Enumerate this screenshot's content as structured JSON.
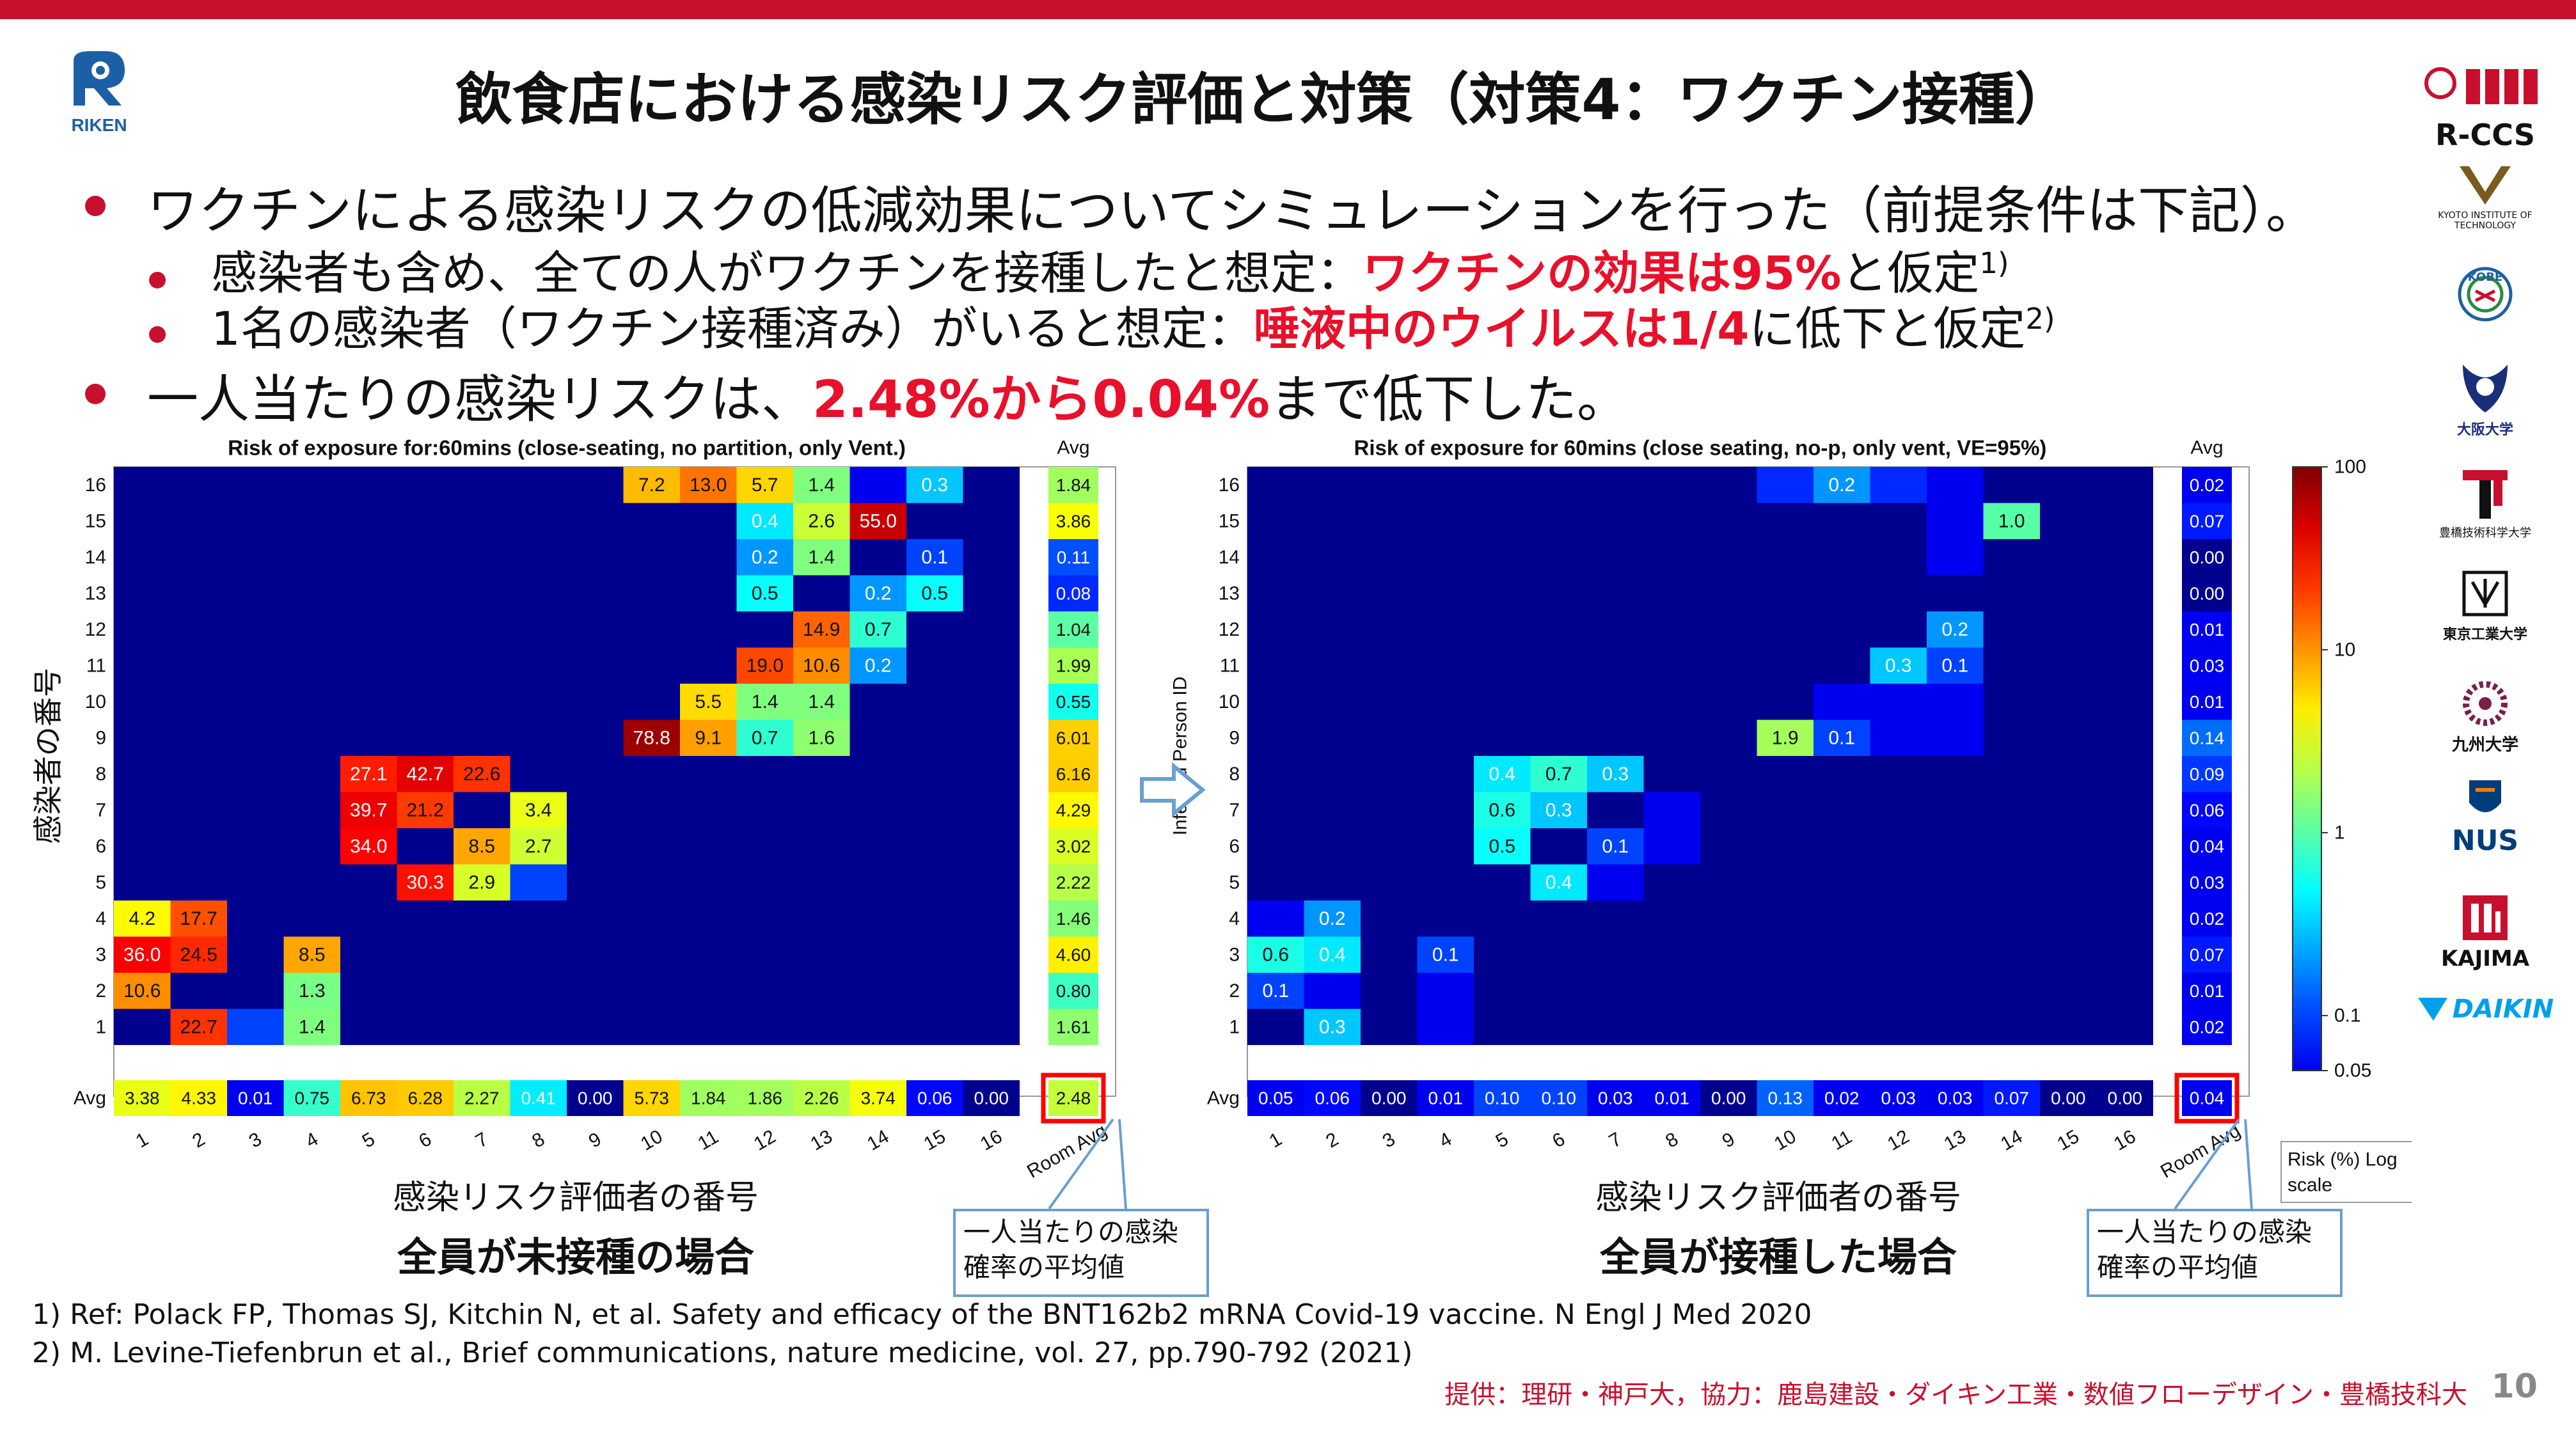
{
  "header": {
    "title": "飲食店における感染リスク評価と対策（対策4：ワクチン接種）",
    "logo_text": "RIKEN"
  },
  "bullets": {
    "b1": "ワクチンによる感染リスクの低減効果についてシミュレーションを行った（前提条件は下記）。",
    "b2_pre": "感染者も含め、全ての人がワクチンを接種したと想定：",
    "b2_red": "ワクチンの効果は95%",
    "b2_post": "と仮定",
    "b2_sup": "1)",
    "b3_pre": "1名の感染者（ワクチン接種済み）がいると想定：",
    "b3_red": "唾液中のウイルスは1/4",
    "b3_post": "に低下と仮定",
    "b3_sup": "2)",
    "b4_pre": "一人当たりの感染リスクは、",
    "b4_red": "2.48%から0.04%",
    "b4_post": "まで低下した。"
  },
  "chart_data": [
    {
      "type": "heatmap",
      "title": "Risk of exposure for:60mins (close-seating, no partition, only Vent.)",
      "ylabel": "感染者の番号",
      "xlabel": "感染リスク評価者の番号",
      "rows": [
        1,
        2,
        3,
        4,
        5,
        6,
        7,
        8,
        9,
        10,
        11,
        12,
        13,
        14,
        15,
        16
      ],
      "cols": [
        1,
        2,
        3,
        4,
        5,
        6,
        7,
        8,
        9,
        10,
        11,
        12,
        13,
        14,
        15,
        16
      ],
      "cells": [
        {
          "r": 16,
          "c": 10,
          "v": 7.2
        },
        {
          "r": 16,
          "c": 11,
          "v": 13.0
        },
        {
          "r": 16,
          "c": 12,
          "v": 5.7
        },
        {
          "r": 16,
          "c": 13,
          "v": 1.4
        },
        {
          "r": 16,
          "c": 14,
          "v": 0.01
        },
        {
          "r": 16,
          "c": 15,
          "v": 0.3
        },
        {
          "r": 15,
          "c": 12,
          "v": 0.4
        },
        {
          "r": 15,
          "c": 13,
          "v": 2.6
        },
        {
          "r": 15,
          "c": 14,
          "v": 55.0
        },
        {
          "r": 14,
          "c": 12,
          "v": 0.2
        },
        {
          "r": 14,
          "c": 13,
          "v": 1.4
        },
        {
          "r": 14,
          "c": 15,
          "v": 0.1
        },
        {
          "r": 13,
          "c": 12,
          "v": 0.5
        },
        {
          "r": 13,
          "c": 14,
          "v": 0.2
        },
        {
          "r": 13,
          "c": 15,
          "v": 0.5
        },
        {
          "r": 12,
          "c": 13,
          "v": 14.9
        },
        {
          "r": 12,
          "c": 14,
          "v": 0.7
        },
        {
          "r": 11,
          "c": 12,
          "v": 19.0
        },
        {
          "r": 11,
          "c": 13,
          "v": 10.6
        },
        {
          "r": 11,
          "c": 14,
          "v": 0.2
        },
        {
          "r": 10,
          "c": 11,
          "v": 5.5
        },
        {
          "r": 10,
          "c": 12,
          "v": 1.4
        },
        {
          "r": 10,
          "c": 13,
          "v": 1.4
        },
        {
          "r": 9,
          "c": 10,
          "v": 78.8
        },
        {
          "r": 9,
          "c": 11,
          "v": 9.1
        },
        {
          "r": 9,
          "c": 12,
          "v": 0.7
        },
        {
          "r": 9,
          "c": 13,
          "v": 1.6
        },
        {
          "r": 8,
          "c": 5,
          "v": 27.1
        },
        {
          "r": 8,
          "c": 6,
          "v": 42.7
        },
        {
          "r": 8,
          "c": 7,
          "v": 22.6
        },
        {
          "r": 7,
          "c": 5,
          "v": 39.7
        },
        {
          "r": 7,
          "c": 6,
          "v": 21.2
        },
        {
          "r": 7,
          "c": 8,
          "v": 3.4
        },
        {
          "r": 6,
          "c": 5,
          "v": 34.0
        },
        {
          "r": 6,
          "c": 7,
          "v": 8.5
        },
        {
          "r": 6,
          "c": 8,
          "v": 2.7
        },
        {
          "r": 5,
          "c": 6,
          "v": 30.3
        },
        {
          "r": 5,
          "c": 7,
          "v": 2.9
        },
        {
          "r": 5,
          "c": 8,
          "v": 0.1
        },
        {
          "r": 4,
          "c": 1,
          "v": 4.2
        },
        {
          "r": 4,
          "c": 2,
          "v": 17.7
        },
        {
          "r": 3,
          "c": 1,
          "v": 36.0
        },
        {
          "r": 3,
          "c": 2,
          "v": 24.5
        },
        {
          "r": 3,
          "c": 4,
          "v": 8.5
        },
        {
          "r": 2,
          "c": 1,
          "v": 10.6
        },
        {
          "r": 2,
          "c": 4,
          "v": 1.3
        },
        {
          "r": 1,
          "c": 2,
          "v": 22.7
        },
        {
          "r": 1,
          "c": 3,
          "v": 0.1
        },
        {
          "r": 1,
          "c": 4,
          "v": 1.4
        }
      ],
      "hidden_label_cells": [
        {
          "r": 16,
          "c": 14
        },
        {
          "r": 5,
          "c": 8
        },
        {
          "r": 1,
          "c": 3
        }
      ],
      "row_avg_label": "Avg",
      "row_avg": [
        1.61,
        0.8,
        4.6,
        1.46,
        2.22,
        3.02,
        4.29,
        6.16,
        6.01,
        0.55,
        1.99,
        1.04,
        0.08,
        0.11,
        3.86,
        1.84
      ],
      "col_avg_label": "Avg",
      "col_avg": [
        3.38,
        4.33,
        0.01,
        0.75,
        6.73,
        6.28,
        2.27,
        0.41,
        0.0,
        5.73,
        1.84,
        1.86,
        2.26,
        3.74,
        0.06,
        0.0
      ],
      "room_avg_label": "Room Avg",
      "room_avg": 2.48,
      "caption": "全員が未接種の場合",
      "callout": "一人当たりの感染確率の平均値"
    },
    {
      "type": "heatmap",
      "title": "Risk of exposure for 60mins (close seating, no-p, only vent, VE=95%)",
      "ylabel": "Infected Person ID",
      "xlabel": "感染リスク評価者の番号",
      "rows": [
        1,
        2,
        3,
        4,
        5,
        6,
        7,
        8,
        9,
        10,
        11,
        12,
        13,
        14,
        15,
        16
      ],
      "cols": [
        1,
        2,
        3,
        4,
        5,
        6,
        7,
        8,
        9,
        10,
        11,
        12,
        13,
        14,
        15,
        16
      ],
      "cells": [
        {
          "r": 16,
          "c": 10,
          "v": 0.08
        },
        {
          "r": 16,
          "c": 11,
          "v": 0.2
        },
        {
          "r": 16,
          "c": 12,
          "v": 0.08
        },
        {
          "r": 16,
          "c": 13,
          "v": 0.03
        },
        {
          "r": 15,
          "c": 13,
          "v": 0.05
        },
        {
          "r": 15,
          "c": 14,
          "v": 1.0
        },
        {
          "r": 14,
          "c": 13,
          "v": 0.02
        },
        {
          "r": 12,
          "c": 13,
          "v": 0.2
        },
        {
          "r": 11,
          "c": 12,
          "v": 0.3
        },
        {
          "r": 11,
          "c": 13,
          "v": 0.1
        },
        {
          "r": 10,
          "c": 11,
          "v": 0.05
        },
        {
          "r": 10,
          "c": 12,
          "v": 0.04
        },
        {
          "r": 10,
          "c": 13,
          "v": 0.04
        },
        {
          "r": 9,
          "c": 10,
          "v": 1.9
        },
        {
          "r": 9,
          "c": 11,
          "v": 0.1
        },
        {
          "r": 9,
          "c": 12,
          "v": 0.03
        },
        {
          "r": 9,
          "c": 13,
          "v": 0.03
        },
        {
          "r": 8,
          "c": 5,
          "v": 0.4
        },
        {
          "r": 8,
          "c": 6,
          "v": 0.7
        },
        {
          "r": 8,
          "c": 7,
          "v": 0.3
        },
        {
          "r": 7,
          "c": 5,
          "v": 0.6
        },
        {
          "r": 7,
          "c": 6,
          "v": 0.3
        },
        {
          "r": 7,
          "c": 8,
          "v": 0.04
        },
        {
          "r": 6,
          "c": 5,
          "v": 0.5
        },
        {
          "r": 6,
          "c": 7,
          "v": 0.1
        },
        {
          "r": 6,
          "c": 8,
          "v": 0.04
        },
        {
          "r": 5,
          "c": 6,
          "v": 0.4
        },
        {
          "r": 5,
          "c": 7,
          "v": 0.02
        },
        {
          "r": 4,
          "c": 1,
          "v": 0.05
        },
        {
          "r": 4,
          "c": 2,
          "v": 0.2
        },
        {
          "r": 3,
          "c": 1,
          "v": 0.6
        },
        {
          "r": 3,
          "c": 2,
          "v": 0.4
        },
        {
          "r": 3,
          "c": 4,
          "v": 0.1
        },
        {
          "r": 2,
          "c": 1,
          "v": 0.1
        },
        {
          "r": 2,
          "c": 2,
          "v": 0.04
        },
        {
          "r": 2,
          "c": 4,
          "v": 0.03
        },
        {
          "r": 1,
          "c": 2,
          "v": 0.3
        },
        {
          "r": 1,
          "c": 4,
          "v": 0.02
        }
      ],
      "hidden_label_cells": [
        {
          "r": 16,
          "c": 10
        },
        {
          "r": 16,
          "c": 12
        },
        {
          "r": 16,
          "c": 13
        },
        {
          "r": 15,
          "c": 13
        },
        {
          "r": 14,
          "c": 13
        },
        {
          "r": 10,
          "c": 11
        },
        {
          "r": 10,
          "c": 12
        },
        {
          "r": 10,
          "c": 13
        },
        {
          "r": 9,
          "c": 12
        },
        {
          "r": 9,
          "c": 13
        },
        {
          "r": 7,
          "c": 8
        },
        {
          "r": 6,
          "c": 8
        },
        {
          "r": 5,
          "c": 7
        },
        {
          "r": 4,
          "c": 1
        },
        {
          "r": 2,
          "c": 2
        },
        {
          "r": 2,
          "c": 4
        },
        {
          "r": 1,
          "c": 4
        }
      ],
      "row_avg_label": "Avg",
      "row_avg": [
        0.02,
        0.01,
        0.07,
        0.02,
        0.03,
        0.04,
        0.06,
        0.09,
        0.14,
        0.01,
        0.03,
        0.01,
        0.0,
        0.0,
        0.07,
        0.02
      ],
      "col_avg_label": "Avg",
      "col_avg": [
        0.05,
        0.06,
        0.0,
        0.01,
        0.1,
        0.1,
        0.03,
        0.01,
        0.0,
        0.13,
        0.02,
        0.03,
        0.03,
        0.07,
        0.0,
        0.0
      ],
      "room_avg_label": "Room Avg",
      "room_avg": 0.04,
      "caption": "全員が接種した場合",
      "callout": "一人当たりの感染確率の平均値",
      "colorbar": {
        "scale": "log",
        "ticks": [
          "100",
          "10",
          "1",
          "0.1",
          "0.05"
        ],
        "label": "Risk (%) Log scale"
      }
    }
  ],
  "colors": {
    "background": "#00008f",
    "accent": "#c8102e",
    "highlight_box": "#ff0000"
  },
  "references": {
    "r1": "1) Ref: Polack FP, Thomas SJ, Kitchin N, et al. Safety and efficacy of the BNT162b2 mRNA Covid-19 vaccine. N Engl J Med 2020",
    "r2": "2) M. Levine-Tiefenbrun et al., Brief communications, nature medicine, vol. 27, pp.790-792 (2021)"
  },
  "footer": {
    "credit": "提供：理研・神戸大，協力：鹿島建設・ダイキン工業・数値フローデザイン・豊橋技科大",
    "page_number": "10"
  },
  "partners": {
    "rccs": "R-CCS",
    "kyoto": "KYOTO INSTITUTE OF TECHNOLOGY",
    "kobe": "KOBE",
    "osaka": "大阪大学",
    "toyohashi": "豊橋技術科学大学",
    "tokyotech": "東京工業大学",
    "kyushu": "九州大学",
    "nus": "NUS",
    "kajima": "KAJIMA",
    "daikin": "DAIKIN"
  }
}
